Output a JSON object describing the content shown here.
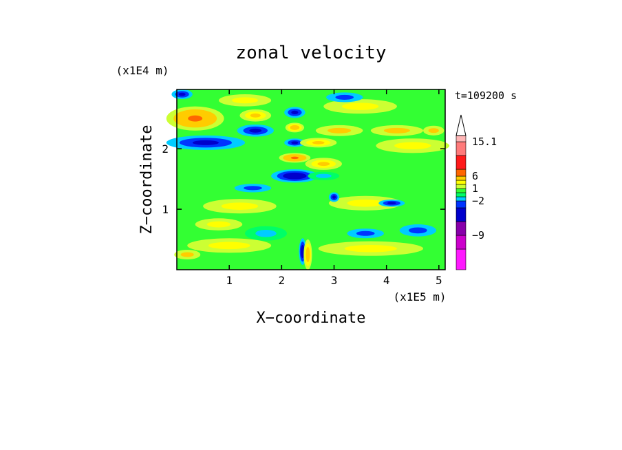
{
  "chart_data": {
    "type": "heatmap",
    "title": "zonal velocity",
    "xlabel": "X−coordinate",
    "ylabel": "Z−coordinate",
    "x_unit": "(x1E5 m)",
    "y_unit": "(x1E4 m)",
    "time_label": "t=109200 s",
    "xlim": [
      0,
      5.12
    ],
    "ylim": [
      0,
      2.98
    ],
    "x_ticks": [
      1,
      2,
      3,
      4,
      5
    ],
    "y_ticks": [
      1,
      2
    ],
    "colorbar": {
      "levels": [
        -16,
        -12,
        -9,
        -6,
        -3,
        -2,
        -1,
        0,
        1,
        2,
        3,
        6,
        9,
        12,
        15.1
      ],
      "labels": [
        {
          "value": 15.1,
          "text": "15.1"
        },
        {
          "value": 6,
          "text": "6"
        },
        {
          "value": 1,
          "text": "1"
        },
        {
          "value": -2,
          "text": "−2"
        },
        {
          "value": -9,
          "text": "−9"
        }
      ],
      "colors": [
        "#ff19ff",
        "#cc00cc",
        "#8800aa",
        "#0000cc",
        "#0033ff",
        "#00ccff",
        "#00ff66",
        "#33ff33",
        "#ccff33",
        "#ffff00",
        "#ffcc00",
        "#ff6600",
        "#ff1a1a",
        "#ff7a7a",
        "#ffb6b6"
      ]
    },
    "blobs": [
      {
        "x": 0.55,
        "z": 2.1,
        "rx": 0.75,
        "rz": 0.12,
        "v": -4
      },
      {
        "x": 1.5,
        "z": 2.3,
        "rx": 0.35,
        "rz": 0.1,
        "v": -4
      },
      {
        "x": 2.25,
        "z": 1.55,
        "rx": 0.45,
        "rz": 0.11,
        "v": -5
      },
      {
        "x": 2.25,
        "z": 2.6,
        "rx": 0.2,
        "rz": 0.09,
        "v": -4
      },
      {
        "x": 2.25,
        "z": 2.1,
        "rx": 0.2,
        "rz": 0.07,
        "v": -4
      },
      {
        "x": 0.35,
        "z": 2.5,
        "rx": 0.55,
        "rz": 0.2,
        "v": 6
      },
      {
        "x": 1.5,
        "z": 2.55,
        "rx": 0.3,
        "rz": 0.1,
        "v": 4
      },
      {
        "x": 2.25,
        "z": 2.35,
        "rx": 0.18,
        "rz": 0.08,
        "v": 5
      },
      {
        "x": 2.25,
        "z": 1.85,
        "rx": 0.3,
        "rz": 0.08,
        "v": 6
      },
      {
        "x": 2.8,
        "z": 1.75,
        "rx": 0.35,
        "rz": 0.1,
        "v": 4
      },
      {
        "x": 2.7,
        "z": 2.1,
        "rx": 0.35,
        "rz": 0.08,
        "v": 4
      },
      {
        "x": 1.45,
        "z": 1.35,
        "rx": 0.35,
        "rz": 0.07,
        "v": -3
      },
      {
        "x": 2.8,
        "z": 1.55,
        "rx": 0.3,
        "rz": 0.07,
        "v": -2
      },
      {
        "x": 1.2,
        "z": 1.05,
        "rx": 0.7,
        "rz": 0.12,
        "v": 2
      },
      {
        "x": 3.6,
        "z": 1.1,
        "rx": 0.7,
        "rz": 0.12,
        "v": 2
      },
      {
        "x": 4.5,
        "z": 2.05,
        "rx": 0.7,
        "rz": 0.12,
        "v": 2
      },
      {
        "x": 1.3,
        "z": 2.8,
        "rx": 0.5,
        "rz": 0.1,
        "v": 2
      },
      {
        "x": 3.5,
        "z": 2.7,
        "rx": 0.7,
        "rz": 0.12,
        "v": 2
      },
      {
        "x": 3.2,
        "z": 2.85,
        "rx": 0.35,
        "rz": 0.08,
        "v": -3
      },
      {
        "x": 3.1,
        "z": 2.3,
        "rx": 0.45,
        "rz": 0.09,
        "v": 3
      },
      {
        "x": 3.6,
        "z": 0.6,
        "rx": 0.35,
        "rz": 0.08,
        "v": -3
      },
      {
        "x": 4.6,
        "z": 0.65,
        "rx": 0.35,
        "rz": 0.1,
        "v": -3
      },
      {
        "x": 1.7,
        "z": 0.6,
        "rx": 0.4,
        "rz": 0.12,
        "v": -2
      },
      {
        "x": 4.1,
        "z": 1.1,
        "rx": 0.25,
        "rz": 0.06,
        "v": -4
      },
      {
        "x": 3.0,
        "z": 1.2,
        "rx": 0.1,
        "rz": 0.08,
        "v": -4
      },
      {
        "x": 0.2,
        "z": 0.25,
        "rx": 0.25,
        "rz": 0.08,
        "v": 3
      },
      {
        "x": 1.0,
        "z": 0.4,
        "rx": 0.8,
        "rz": 0.12,
        "v": 2
      },
      {
        "x": 3.7,
        "z": 0.35,
        "rx": 1.0,
        "rz": 0.12,
        "v": 2
      },
      {
        "x": 0.8,
        "z": 0.75,
        "rx": 0.45,
        "rz": 0.1,
        "v": 2
      },
      {
        "x": 2.4,
        "z": 0.3,
        "rx": 0.07,
        "rz": 0.22,
        "v": -5
      },
      {
        "x": 2.5,
        "z": 0.25,
        "rx": 0.08,
        "rz": 0.25,
        "v": 5
      },
      {
        "x": 0.1,
        "z": 2.9,
        "rx": 0.2,
        "rz": 0.08,
        "v": -4
      },
      {
        "x": 4.9,
        "z": 2.3,
        "rx": 0.2,
        "rz": 0.08,
        "v": 3
      },
      {
        "x": 4.2,
        "z": 2.3,
        "rx": 0.5,
        "rz": 0.09,
        "v": 3
      }
    ]
  }
}
